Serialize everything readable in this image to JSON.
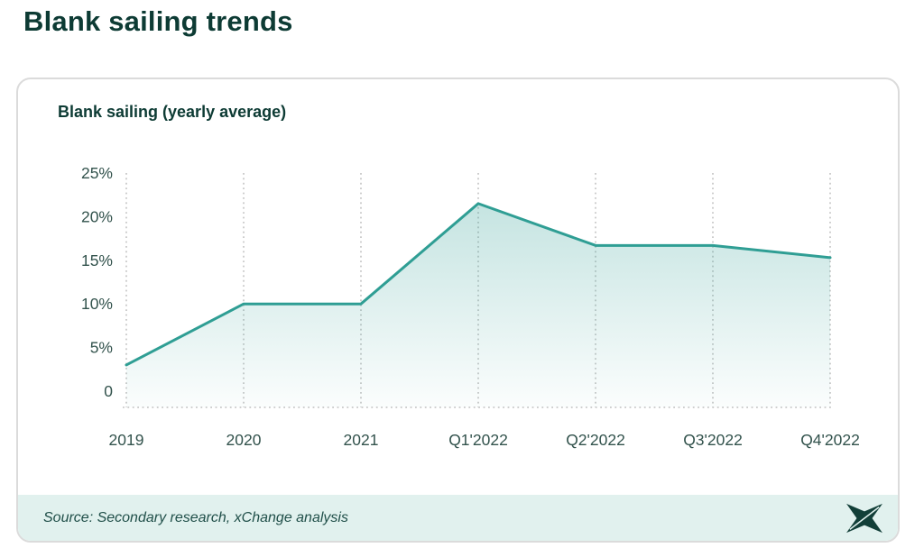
{
  "page": {
    "title": "Blank sailing trends"
  },
  "chart": {
    "title": "Blank sailing (yearly average)"
  },
  "chart_data": {
    "type": "area",
    "title": "Blank sailing (yearly average)",
    "categories": [
      "2019",
      "2020",
      "2021",
      "Q1'2022",
      "Q2'2022",
      "Q3'2022",
      "Q4'2022"
    ],
    "values": [
      3,
      10,
      10,
      21.5,
      16.7,
      16.7,
      15.3
    ],
    "unit": "%",
    "y_ticks": [
      {
        "value": 25,
        "label": "25%"
      },
      {
        "value": 20,
        "label": "20%"
      },
      {
        "value": 15,
        "label": "15%"
      },
      {
        "value": 10,
        "label": "10%"
      },
      {
        "value": 5,
        "label": "5%"
      },
      {
        "value": 0,
        "label": "0"
      }
    ],
    "ylim": [
      0,
      25
    ],
    "xlabel": "",
    "ylabel": "",
    "grid": "vertical-dotted-plus-baseline",
    "legend": "none",
    "line_color": "#2F9E94",
    "fill_top": "rgba(47,158,148,0.28)",
    "fill_bottom": "rgba(47,158,148,0.02)",
    "gridline_color": "#C9C9C9",
    "axis_label_color": "#33534D"
  },
  "footer": {
    "source": "Source: Secondary research, xChange analysis",
    "logo": "xchange-logo"
  },
  "colors": {
    "title_text": "#0D3B34",
    "card_border": "#DBDBDB",
    "footer_bg": "#E1F1EE",
    "logo_fill": "#123F38"
  }
}
